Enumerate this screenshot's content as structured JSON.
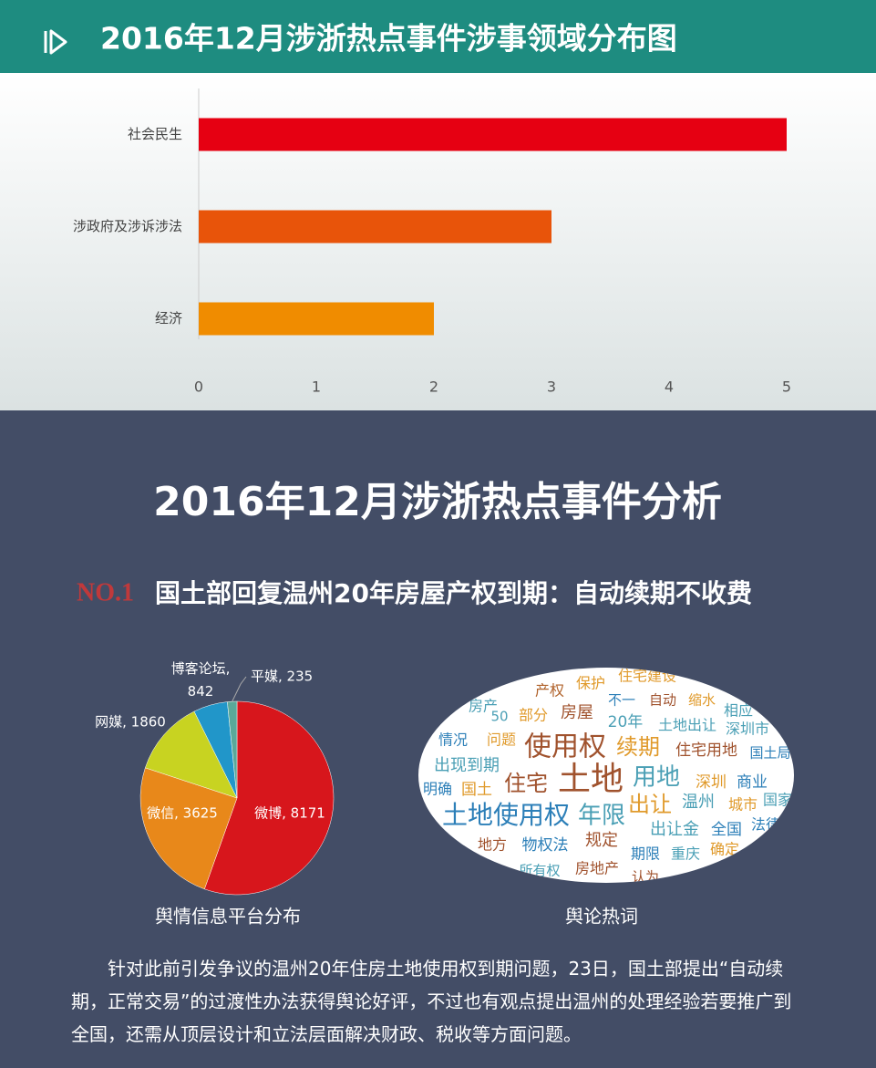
{
  "header": {
    "title": "2016年12月涉浙热点事件涉事领域分布图"
  },
  "chart_data": [
    {
      "type": "bar",
      "orientation": "horizontal",
      "categories": [
        "社会民生",
        "涉政府及涉诉涉法",
        "经济"
      ],
      "values": [
        5,
        3,
        2
      ],
      "colors": [
        "#e60012",
        "#e8540a",
        "#f08c00"
      ],
      "xlim": [
        0,
        5
      ],
      "xticks": [
        0,
        1,
        2,
        3,
        4,
        5
      ]
    },
    {
      "type": "pie",
      "title": "舆情信息平台分布",
      "categories": [
        "微博",
        "微信",
        "网媒",
        "博客论坛",
        "平媒"
      ],
      "values": [
        8171,
        3625,
        1860,
        842,
        235
      ],
      "value_labels": [
        "微博, 8171",
        "微信, 3625",
        "网媒, 1860",
        "博客论坛, 842",
        "平媒, 235"
      ],
      "colors": [
        "#d7161c",
        "#e8881a",
        "#c8d321",
        "#2196c9",
        "#5aa899"
      ]
    }
  ],
  "section": {
    "title": "2016年12月涉浙热点事件分析",
    "badge": "NO.1",
    "headline": "国土部回复温州20年房屋产权到期：自动续期不收费"
  },
  "word_cloud": {
    "caption": "舆论热词",
    "words": [
      "产权",
      "保护",
      "住宅建设",
      "房屋",
      "部分",
      "房产",
      "相应",
      "不一",
      "自动",
      "缩水",
      "50",
      "20年",
      "土地出让",
      "深圳市",
      "情况",
      "问题",
      "使用权",
      "续期",
      "住宅用地",
      "国土局",
      "出现到期",
      "土地",
      "住宅",
      "用地",
      "深圳",
      "商业",
      "明确",
      "国土",
      "温州",
      "出让",
      "城市",
      "国家",
      "土地使用权",
      "年限",
      "出让金",
      "全国",
      "法律",
      "地方",
      "物权法",
      "规定",
      "期限",
      "重庆",
      "确定",
      "所有权",
      "房地产",
      "认为"
    ]
  },
  "paragraph": "针对此前引发争议的温州20年住房土地使用权到期问题，23日，国土部提出“自动续期，正常交易”的过渡性办法获得舆论好评，不过也有观点提出温州的处理经验若要推广到全国，还需从顶层设计和立法层面解决财政、税收等方面问题。"
}
